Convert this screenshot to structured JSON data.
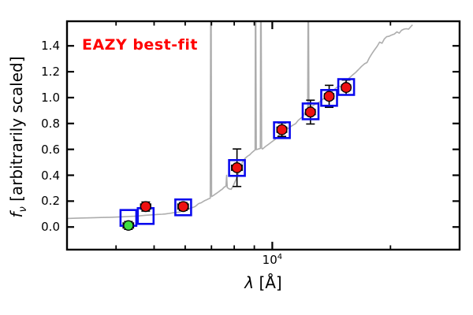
{
  "figure": {
    "annotation": "EAZY best-fit",
    "colors": {
      "annotation": "#ff0000",
      "spectrum": "#adadad",
      "observed_fill": "#ee1111",
      "flagged_fill": "#3fdd3f",
      "model_stroke": "#0b0bee",
      "errorbar": "#000000",
      "frame": "#000000"
    }
  },
  "chart_data": {
    "type": "line",
    "title": "",
    "annotation": "EAZY best-fit",
    "xlabel": "λ [Å]",
    "ylabel": "f_ν [arbitrarily scaled]",
    "xlabel_parts": {
      "symbol": "λ",
      "rest": " [Å]"
    },
    "ylabel_parts": {
      "symbol": "f",
      "sub": "ν",
      "rest": " [arbitrarily scaled]"
    },
    "x_scale": "log",
    "xlim": [
      3000,
      30000
    ],
    "ylim": [
      -0.175,
      1.59
    ],
    "grid": false,
    "legend": "none",
    "y_ticks": [
      0.0,
      0.2,
      0.4,
      0.6,
      0.8,
      1.0,
      1.2,
      1.4
    ],
    "y_tick_labels": [
      "0.0",
      "0.2",
      "0.4",
      "0.6",
      "0.8",
      "1.0",
      "1.2",
      "1.4"
    ],
    "x_major_ticks": [
      10000
    ],
    "x_major_tick_label": {
      "base": "10",
      "exp": "4"
    },
    "x_minor_ticks": [
      4000,
      5000,
      6000,
      7000,
      8000,
      9000,
      20000
    ],
    "series": [
      {
        "name": "eazy-template-spectrum",
        "type": "line",
        "color": "#adadad",
        "points": [
          [
            3000,
            0.066
          ],
          [
            3220,
            0.069
          ],
          [
            3530,
            0.072
          ],
          [
            3870,
            0.075
          ],
          [
            4150,
            0.079
          ],
          [
            4300,
            0.081
          ],
          [
            4450,
            0.083
          ],
          [
            4600,
            0.086
          ],
          [
            4770,
            0.091
          ],
          [
            4950,
            0.094
          ],
          [
            5100,
            0.097
          ],
          [
            5250,
            0.099
          ],
          [
            5340,
            0.101
          ],
          [
            5460,
            0.105
          ],
          [
            5590,
            0.11
          ],
          [
            5700,
            0.112
          ],
          [
            5800,
            0.116
          ],
          [
            5900,
            0.123
          ],
          [
            5990,
            0.13
          ],
          [
            6100,
            0.138
          ],
          [
            6190,
            0.145
          ],
          [
            6290,
            0.152
          ],
          [
            6360,
            0.158
          ],
          [
            6420,
            0.168
          ],
          [
            6480,
            0.179
          ],
          [
            6540,
            0.184
          ],
          [
            6600,
            0.188
          ],
          [
            6660,
            0.196
          ],
          [
            6720,
            0.203
          ],
          [
            6790,
            0.209
          ],
          [
            6850,
            0.215
          ],
          [
            6930,
            0.221
          ],
          [
            6950,
            0.223
          ],
          [
            6965,
            1.59
          ],
          [
            6990,
            1.59
          ],
          [
            7005,
            0.235
          ],
          [
            7040,
            0.239
          ],
          [
            7100,
            0.246
          ],
          [
            7170,
            0.255
          ],
          [
            7240,
            0.264
          ],
          [
            7310,
            0.273
          ],
          [
            7380,
            0.283
          ],
          [
            7450,
            0.291
          ],
          [
            7550,
            0.309
          ],
          [
            7620,
            0.315
          ],
          [
            7650,
            0.4
          ],
          [
            7680,
            0.305
          ],
          [
            7760,
            0.295
          ],
          [
            7860,
            0.291
          ],
          [
            7970,
            0.324
          ],
          [
            8080,
            0.366
          ],
          [
            8190,
            0.409
          ],
          [
            8300,
            0.464
          ],
          [
            8410,
            0.506
          ],
          [
            8530,
            0.531
          ],
          [
            8640,
            0.546
          ],
          [
            8760,
            0.558
          ],
          [
            8880,
            0.576
          ],
          [
            9000,
            0.591
          ],
          [
            9040,
            0.595
          ],
          [
            9055,
            1.59
          ],
          [
            9080,
            1.59
          ],
          [
            9105,
            0.598
          ],
          [
            9150,
            0.6
          ],
          [
            9200,
            0.602
          ],
          [
            9320,
            0.607
          ],
          [
            9340,
            1.59
          ],
          [
            9370,
            1.59
          ],
          [
            9395,
            0.608
          ],
          [
            9440,
            0.603
          ],
          [
            9610,
            0.622
          ],
          [
            9790,
            0.64
          ],
          [
            9970,
            0.658
          ],
          [
            10160,
            0.676
          ],
          [
            10350,
            0.704
          ],
          [
            10490,
            0.719
          ],
          [
            10640,
            0.737
          ],
          [
            10840,
            0.752
          ],
          [
            11040,
            0.767
          ],
          [
            11250,
            0.785
          ],
          [
            11460,
            0.798
          ],
          [
            11620,
            0.822
          ],
          [
            11780,
            0.837
          ],
          [
            11950,
            0.852
          ],
          [
            12110,
            0.883
          ],
          [
            12280,
            0.907
          ],
          [
            12310,
            0.91
          ],
          [
            12330,
            1.59
          ],
          [
            12370,
            1.59
          ],
          [
            12400,
            0.916
          ],
          [
            12510,
            0.925
          ],
          [
            12680,
            0.937
          ],
          [
            12920,
            0.952
          ],
          [
            13160,
            0.965
          ],
          [
            13400,
            0.983
          ],
          [
            13590,
            0.998
          ],
          [
            13780,
            1.01
          ],
          [
            14040,
            1.031
          ],
          [
            14300,
            1.056
          ],
          [
            14570,
            1.077
          ],
          [
            14770,
            1.089
          ],
          [
            14970,
            1.083
          ],
          [
            15180,
            1.107
          ],
          [
            15390,
            1.122
          ],
          [
            15680,
            1.15
          ],
          [
            15970,
            1.171
          ],
          [
            16270,
            1.192
          ],
          [
            16570,
            1.216
          ],
          [
            16880,
            1.241
          ],
          [
            17190,
            1.262
          ],
          [
            17430,
            1.271
          ],
          [
            17670,
            1.307
          ],
          [
            17920,
            1.338
          ],
          [
            18170,
            1.365
          ],
          [
            18510,
            1.398
          ],
          [
            18760,
            1.429
          ],
          [
            19030,
            1.42
          ],
          [
            19290,
            1.453
          ],
          [
            19560,
            1.471
          ],
          [
            19830,
            1.474
          ],
          [
            20100,
            1.483
          ],
          [
            20480,
            1.492
          ],
          [
            20760,
            1.508
          ],
          [
            21050,
            1.498
          ],
          [
            21340,
            1.52
          ],
          [
            21640,
            1.529
          ],
          [
            21940,
            1.532
          ],
          [
            22240,
            1.529
          ],
          [
            22550,
            1.55
          ],
          [
            22760,
            1.562
          ]
        ]
      },
      {
        "name": "model-photometry",
        "type": "scatter",
        "marker": "open-square",
        "color": "#0b0bee",
        "points": [
          [
            4300,
            0.07
          ],
          [
            4760,
            0.085
          ],
          [
            5930,
            0.152
          ],
          [
            8130,
            0.456
          ],
          [
            10580,
            0.748
          ],
          [
            12520,
            0.894
          ],
          [
            13960,
            0.998
          ],
          [
            15420,
            1.082
          ]
        ]
      },
      {
        "name": "observed-photometry",
        "type": "scatter",
        "marker": "filled-circle",
        "color": "#ee1111",
        "points": [
          {
            "lam": 4760,
            "f": 0.158,
            "yerr": 0.035,
            "xerr": 140
          },
          {
            "lam": 5930,
            "f": 0.158,
            "yerr": 0.03,
            "xerr": 180
          },
          {
            "lam": 8130,
            "f": 0.458,
            "yerr": 0.145,
            "xerr": 250
          },
          {
            "lam": 10580,
            "f": 0.752,
            "yerr": 0.052,
            "xerr": 300
          },
          {
            "lam": 12510,
            "f": 0.888,
            "yerr": 0.092,
            "xerr": 350
          },
          {
            "lam": 13960,
            "f": 1.01,
            "yerr": 0.085,
            "xerr": 380
          },
          {
            "lam": 15420,
            "f": 1.078,
            "yerr": 0.058,
            "xerr": 400
          }
        ]
      },
      {
        "name": "flagged-photometry",
        "type": "scatter",
        "marker": "filled-circle",
        "color": "#3fdd3f",
        "points": [
          {
            "lam": 4300,
            "f": 0.012,
            "yerr": 0.03,
            "xerr": 130
          }
        ]
      }
    ]
  }
}
